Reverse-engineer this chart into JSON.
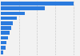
{
  "values": [
    65000,
    39500,
    21500,
    14500,
    11000,
    9500,
    8000,
    6500,
    5000,
    4000,
    2000
  ],
  "bar_color": "#2b7bde",
  "background_color": "#f2f2f2",
  "grid_color": "#cccccc",
  "bar_height": 0.72,
  "figsize": [
    1.0,
    0.71
  ],
  "dpi": 100
}
